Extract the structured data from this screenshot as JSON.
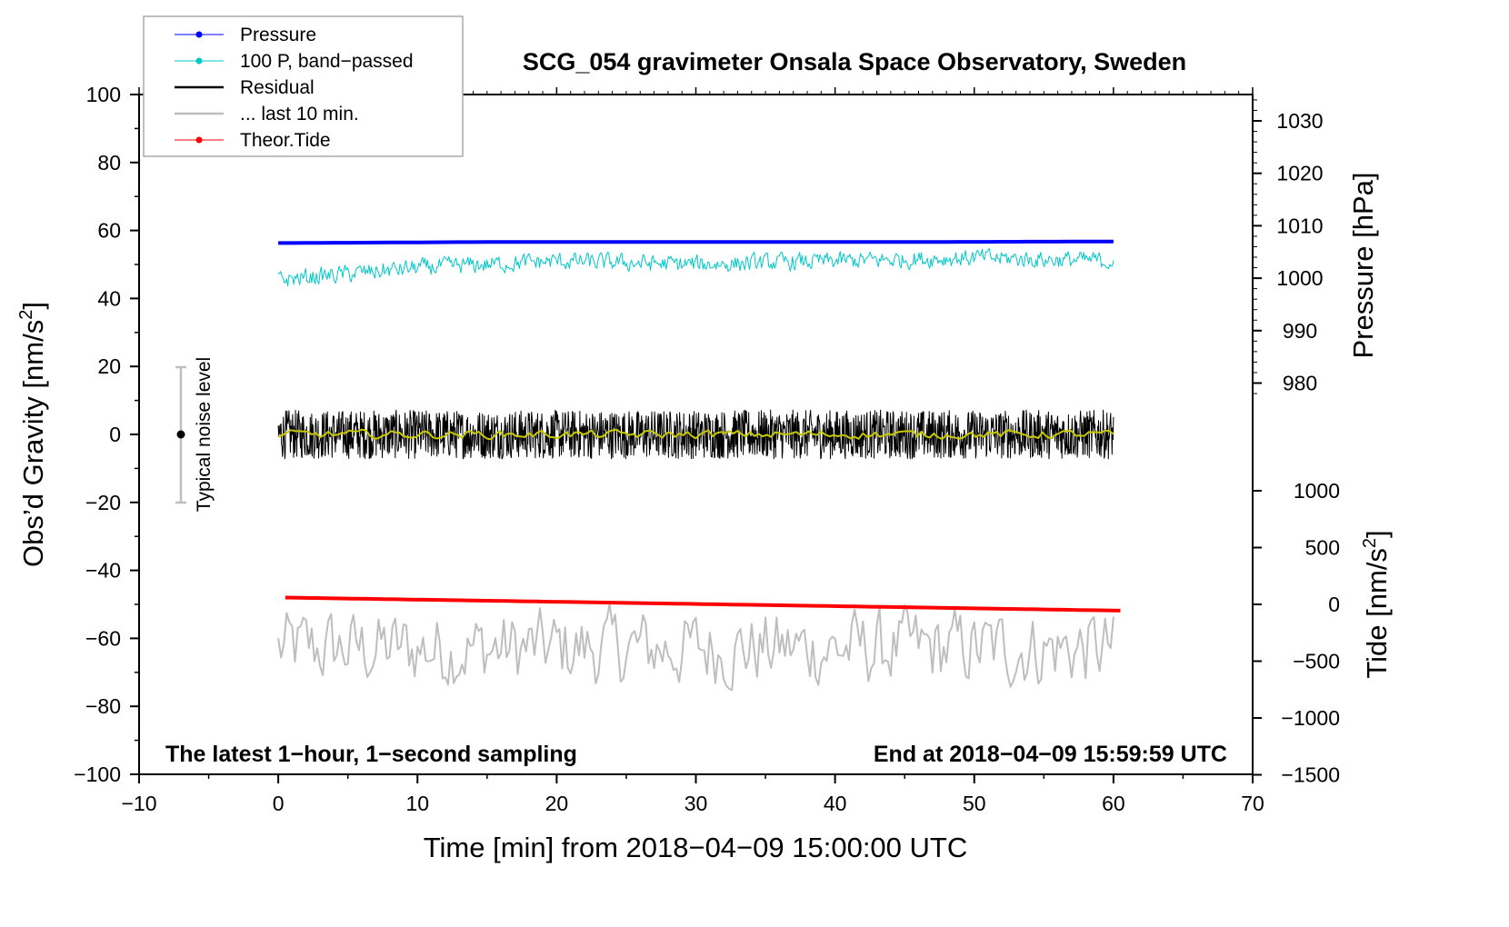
{
  "chart_data": {
    "type": "line",
    "title": "SCG_054 gravimeter Onsala Space Observatory, Sweden",
    "xlabel": "Time [min] from 2018−04−09 15:00:00 UTC",
    "ylabel_left": "Obs’d Gravity [nm/s",
    "ylabel_left_sup": "2",
    "ylabel_left_end": "]",
    "ylabel_right_pressure": "Pressure [hPa]",
    "ylabel_right_tide": "Tide [nm/s",
    "ylabel_right_tide_sup": "2",
    "ylabel_right_tide_end": "]",
    "xlim": [
      -10,
      70
    ],
    "ylim": [
      -100,
      100
    ],
    "x_ticks": [
      "−10",
      "0",
      "10",
      "20",
      "30",
      "40",
      "50",
      "60",
      "70"
    ],
    "y_ticks": [
      "100",
      "80",
      "60",
      "40",
      "20",
      "0",
      "−20",
      "−40",
      "−60",
      "−80",
      "−100"
    ],
    "pressure_ticks": [
      "1030",
      "1020",
      "1010",
      "1000",
      "990",
      "980"
    ],
    "tide_ticks": [
      "1000",
      "500",
      "0",
      "−500",
      "−1000",
      "−1500"
    ],
    "annotation_left": "The latest 1−hour, 1−second sampling",
    "annotation_right": "End at 2018−04−09 15:59:59 UTC",
    "noise_label": "Typical noise level",
    "noise_range": [
      -20,
      20
    ],
    "legend_position": "top-left",
    "legend": [
      {
        "name": "Pressure",
        "color": "#0000ff",
        "marker": true
      },
      {
        "name": "100 P, band−passed",
        "color": "#00c8c8",
        "marker": true
      },
      {
        "name": "Residual",
        "color": "#000000",
        "marker": false
      },
      {
        "name": "... last 10 min.",
        "color": "#bebebe",
        "marker": false
      },
      {
        "name": "Theor.Tide",
        "color": "#ff0000",
        "marker": true
      }
    ],
    "series": [
      {
        "name": "Pressure",
        "axis": "pressure_hPa",
        "x": [
          0,
          15,
          30,
          45,
          60
        ],
        "values": [
          1006.7,
          1006.9,
          1006.9,
          1006.9,
          1007.0
        ],
        "color": "#0000ff"
      },
      {
        "name": "100 P, band-passed",
        "axis": "left",
        "x": [
          0,
          10,
          20,
          30,
          40,
          50,
          60
        ],
        "values": [
          45.5,
          49,
          51,
          50,
          51,
          52,
          51
        ],
        "noise_amp": 2.5,
        "color": "#00c8c8"
      },
      {
        "name": "Residual",
        "axis": "left",
        "x": [
          0,
          60
        ],
        "values": [
          0,
          0
        ],
        "noise_amp": 12,
        "color": "#000000"
      },
      {
        "name": "Residual smoothed",
        "axis": "left",
        "x": [
          0,
          60
        ],
        "values": [
          0,
          0
        ],
        "noise_amp": 1,
        "color": "#c8c800"
      },
      {
        "name": "... last 10 min.",
        "axis": "left",
        "x": [
          0,
          60
        ],
        "values": [
          -63,
          -63
        ],
        "noise_amp": 11,
        "color": "#bebebe"
      },
      {
        "name": "Theor.Tide",
        "axis": "tide_nm_s2",
        "x": [
          0.5,
          60.5
        ],
        "values": [
          60,
          -55
        ],
        "color": "#ff0000"
      }
    ]
  }
}
